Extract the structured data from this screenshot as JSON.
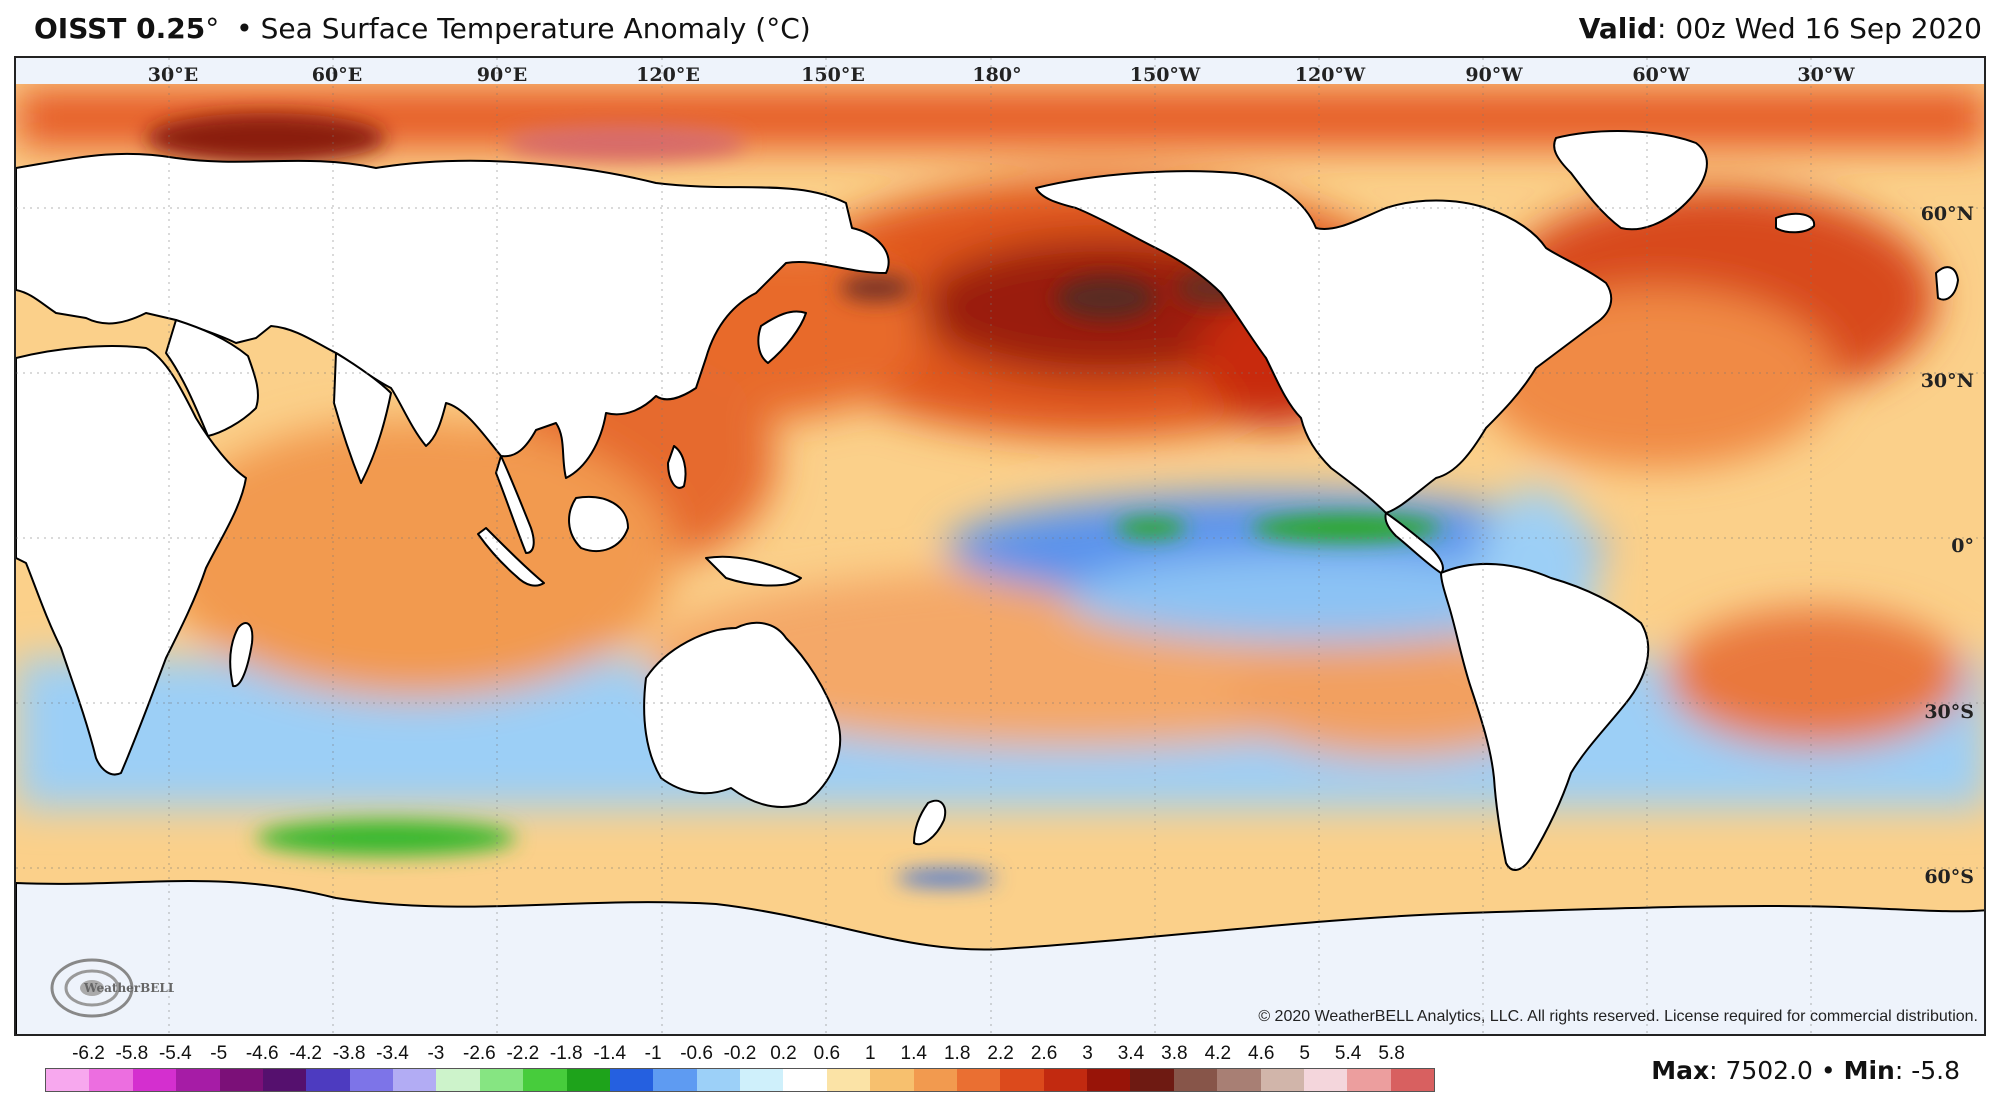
{
  "header": {
    "product": "OISST 0.25",
    "product_unit": "°",
    "separator": "•",
    "variable": "Sea Surface Temperature Anomaly (°C)",
    "valid_label": "Valid",
    "valid_value": ": 00z Wed 16 Sep 2020"
  },
  "map": {
    "projection": "Pacific-centered equirectangular, 0°E–360°E",
    "longitude_labels": [
      "30°E",
      "60°E",
      "90°E",
      "120°E",
      "150°E",
      "180°",
      "150°W",
      "120°W",
      "90°W",
      "60°W",
      "30°W"
    ],
    "latitude_labels": [
      "60°N",
      "30°N",
      "0°",
      "30°S",
      "60°S"
    ],
    "colors": {
      "land": "#ffffff",
      "coast": "#000000",
      "ocean_neutral": "#fff6d8",
      "sea_ice": "#eef2fb"
    }
  },
  "logo": {
    "text": "WeatherBELL",
    "icon": "swirl-logo-icon"
  },
  "copyright": "© 2020 WeatherBELL Analytics, LLC. All rights reserved. License required for commercial distribution.",
  "colorbar": {
    "labels": [
      "-6.2",
      "-5.8",
      "-5.4",
      "-5",
      "-4.6",
      "-4.2",
      "-3.8",
      "-3.4",
      "-3",
      "-2.6",
      "-2.2",
      "-1.8",
      "-1.4",
      "-1",
      "-0.6",
      "-0.2",
      "0.2",
      "0.6",
      "1",
      "1.4",
      "1.8",
      "2.2",
      "2.6",
      "3",
      "3.4",
      "3.8",
      "4.2",
      "4.6",
      "5",
      "5.4",
      "5.8"
    ],
    "colors": [
      "#f7a8ee",
      "#ec6ee0",
      "#d42fcf",
      "#a61ca6",
      "#7b1078",
      "#55106e",
      "#4d3bc0",
      "#7d74e8",
      "#b2acf4",
      "#cdf3cb",
      "#86e582",
      "#47cc3c",
      "#1ea31b",
      "#2560e0",
      "#5e9bf2",
      "#9cd0f8",
      "#cff0fb",
      "#ffffff",
      "#fbe3a6",
      "#f7c06e",
      "#f29a4f",
      "#ea6f32",
      "#dc4a1c",
      "#c22a10",
      "#981408",
      "#6e1a12",
      "#875549",
      "#a87f74",
      "#d1b5aa",
      "#f4d6dc",
      "#ec9e9e",
      "#d86060"
    ]
  },
  "stats": {
    "max_label": "Max",
    "max_value": ": 7502.0",
    "sep": "•",
    "min_label": "Min",
    "min_value": ": -5.8"
  }
}
